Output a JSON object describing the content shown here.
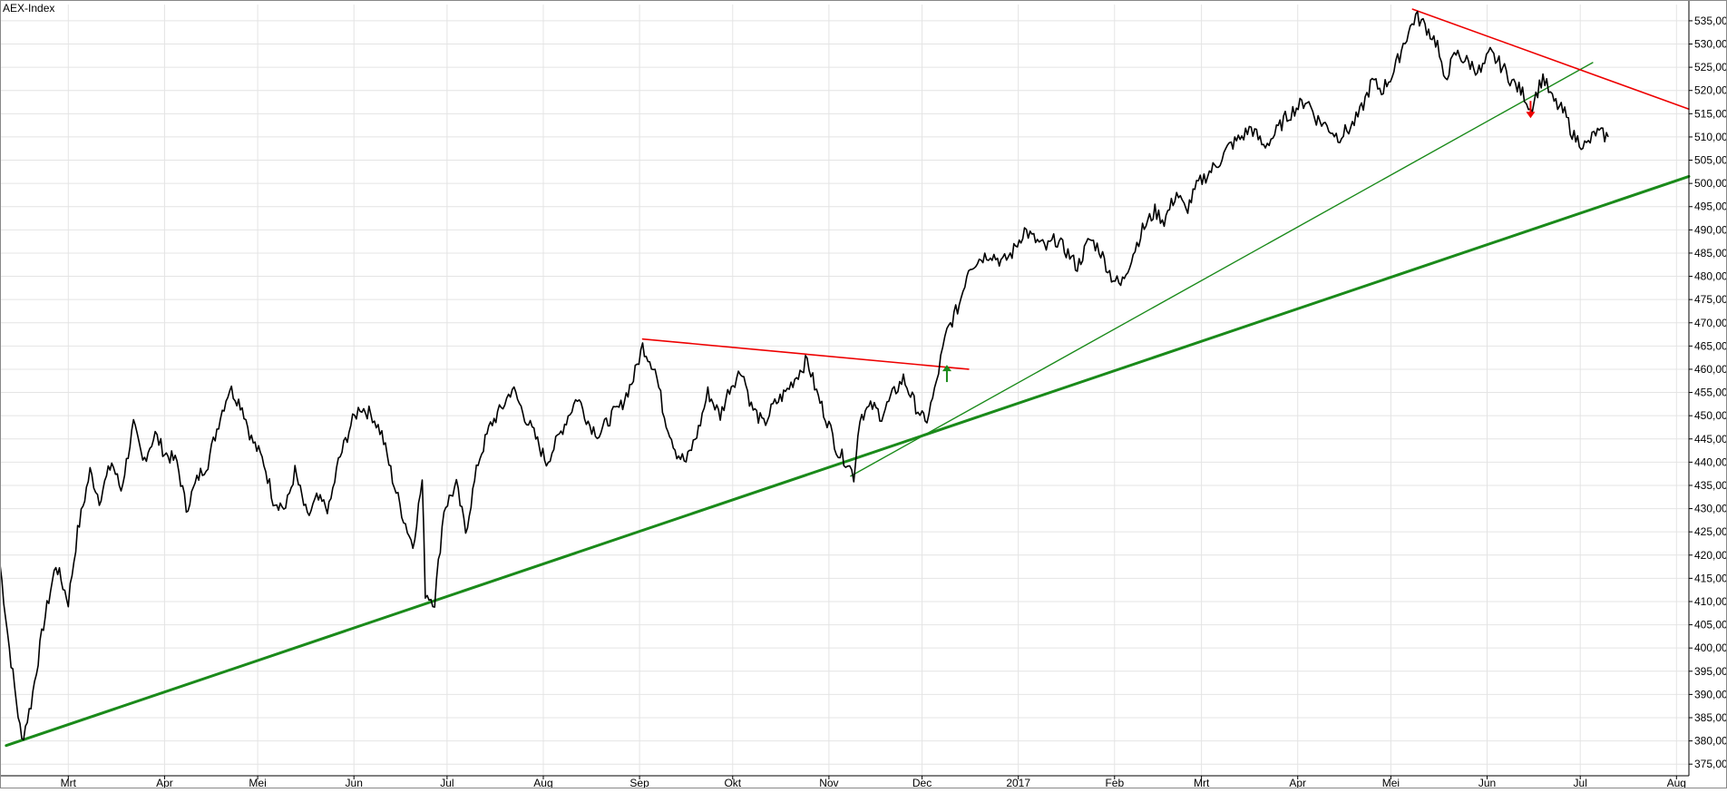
{
  "chart_data": {
    "type": "line",
    "title": "AEX-Index",
    "xlabel": "",
    "ylabel": "",
    "ylim": [
      372.5,
      538.5
    ],
    "y_ticks": [
      375,
      380,
      385,
      390,
      395,
      400,
      405,
      410,
      415,
      420,
      425,
      430,
      435,
      440,
      445,
      450,
      455,
      460,
      465,
      470,
      475,
      480,
      485,
      490,
      495,
      500,
      505,
      510,
      515,
      520,
      525,
      530,
      535
    ],
    "y_tick_labels": [
      "375,00",
      "380,00",
      "385,00",
      "390,00",
      "395,00",
      "400,00",
      "405,00",
      "410,00",
      "415,00",
      "420,00",
      "425,00",
      "430,00",
      "435,00",
      "440,00",
      "445,00",
      "450,00",
      "455,00",
      "460,00",
      "465,00",
      "470,00",
      "475,00",
      "480,00",
      "485,00",
      "490,00",
      "495,00",
      "500,00",
      "505,00",
      "510,00",
      "515,00",
      "520,00",
      "525,00",
      "530,00",
      "535,00"
    ],
    "x_range": [
      "2016-02-08",
      "2017-08-05"
    ],
    "x_ticks": [
      {
        "date": "2016-03-01",
        "label": "Mrt"
      },
      {
        "date": "2016-04-01",
        "label": "Apr"
      },
      {
        "date": "2016-05-01",
        "label": "Mei"
      },
      {
        "date": "2016-06-01",
        "label": "Jun"
      },
      {
        "date": "2016-07-01",
        "label": "Jul"
      },
      {
        "date": "2016-08-01",
        "label": "Aug"
      },
      {
        "date": "2016-09-01",
        "label": "Sep"
      },
      {
        "date": "2016-10-01",
        "label": "Okt"
      },
      {
        "date": "2016-11-01",
        "label": "Nov"
      },
      {
        "date": "2016-12-01",
        "label": "Dec"
      },
      {
        "date": "2017-01-01",
        "label": "2017"
      },
      {
        "date": "2017-02-01",
        "label": "Feb"
      },
      {
        "date": "2017-03-01",
        "label": "Mrt"
      },
      {
        "date": "2017-04-01",
        "label": "Apr"
      },
      {
        "date": "2017-05-01",
        "label": "Mei"
      },
      {
        "date": "2017-06-01",
        "label": "Jun"
      },
      {
        "date": "2017-07-01",
        "label": "Jul"
      },
      {
        "date": "2017-08-01",
        "label": "Aug"
      }
    ],
    "grid": true,
    "series": [
      {
        "color": "#000000",
        "points": [
          [
            "2016-02-08",
            418
          ],
          [
            "2016-02-11",
            400
          ],
          [
            "2016-02-15",
            380
          ],
          [
            "2016-02-18",
            388
          ],
          [
            "2016-02-22",
            405
          ],
          [
            "2016-02-26",
            418
          ],
          [
            "2016-03-01",
            410
          ],
          [
            "2016-03-04",
            425
          ],
          [
            "2016-03-08",
            438
          ],
          [
            "2016-03-11",
            432
          ],
          [
            "2016-03-15",
            440
          ],
          [
            "2016-03-18",
            434
          ],
          [
            "2016-03-22",
            448
          ],
          [
            "2016-03-25",
            440
          ],
          [
            "2016-03-29",
            446
          ],
          [
            "2016-04-01",
            442
          ],
          [
            "2016-04-05",
            440
          ],
          [
            "2016-04-08",
            430
          ],
          [
            "2016-04-12",
            437
          ],
          [
            "2016-04-15",
            440
          ],
          [
            "2016-04-19",
            450
          ],
          [
            "2016-04-22",
            456
          ],
          [
            "2016-04-26",
            452
          ],
          [
            "2016-04-29",
            445
          ],
          [
            "2016-05-03",
            440
          ],
          [
            "2016-05-06",
            432
          ],
          [
            "2016-05-10",
            430
          ],
          [
            "2016-05-13",
            438
          ],
          [
            "2016-05-17",
            428
          ],
          [
            "2016-05-20",
            432
          ],
          [
            "2016-05-24",
            430
          ],
          [
            "2016-05-27",
            440
          ],
          [
            "2016-05-31",
            448
          ],
          [
            "2016-06-03",
            452
          ],
          [
            "2016-06-07",
            450
          ],
          [
            "2016-06-10",
            446
          ],
          [
            "2016-06-14",
            435
          ],
          [
            "2016-06-17",
            428
          ],
          [
            "2016-06-20",
            422
          ],
          [
            "2016-06-23",
            436
          ],
          [
            "2016-06-24",
            412
          ],
          [
            "2016-06-27",
            410
          ],
          [
            "2016-06-30",
            430
          ],
          [
            "2016-07-04",
            435
          ],
          [
            "2016-07-07",
            425
          ],
          [
            "2016-07-11",
            440
          ],
          [
            "2016-07-15",
            448
          ],
          [
            "2016-07-19",
            452
          ],
          [
            "2016-07-22",
            456
          ],
          [
            "2016-07-26",
            450
          ],
          [
            "2016-07-29",
            446
          ],
          [
            "2016-08-02",
            440
          ],
          [
            "2016-08-05",
            444
          ],
          [
            "2016-08-09",
            450
          ],
          [
            "2016-08-12",
            454
          ],
          [
            "2016-08-16",
            448
          ],
          [
            "2016-08-19",
            446
          ],
          [
            "2016-08-23",
            450
          ],
          [
            "2016-08-26",
            452
          ],
          [
            "2016-08-30",
            458
          ],
          [
            "2016-09-02",
            465
          ],
          [
            "2016-09-06",
            460
          ],
          [
            "2016-09-09",
            450
          ],
          [
            "2016-09-13",
            442
          ],
          [
            "2016-09-16",
            440
          ],
          [
            "2016-09-20",
            447
          ],
          [
            "2016-09-23",
            455
          ],
          [
            "2016-09-27",
            450
          ],
          [
            "2016-09-30",
            456
          ],
          [
            "2016-10-04",
            460
          ],
          [
            "2016-10-07",
            452
          ],
          [
            "2016-10-11",
            448
          ],
          [
            "2016-10-14",
            452
          ],
          [
            "2016-10-18",
            455
          ],
          [
            "2016-10-21",
            458
          ],
          [
            "2016-10-25",
            462
          ],
          [
            "2016-10-28",
            455
          ],
          [
            "2016-11-01",
            448
          ],
          [
            "2016-11-04",
            442
          ],
          [
            "2016-11-07",
            440
          ],
          [
            "2016-11-09",
            437
          ],
          [
            "2016-11-11",
            450
          ],
          [
            "2016-11-15",
            452
          ],
          [
            "2016-11-18",
            450
          ],
          [
            "2016-11-22",
            455
          ],
          [
            "2016-11-25",
            458
          ],
          [
            "2016-11-29",
            452
          ],
          [
            "2016-12-01",
            450
          ],
          [
            "2016-12-02",
            448
          ],
          [
            "2016-12-05",
            455
          ],
          [
            "2016-12-07",
            462
          ],
          [
            "2016-12-09",
            468
          ],
          [
            "2016-12-13",
            474
          ],
          [
            "2016-12-16",
            482
          ],
          [
            "2016-12-20",
            484
          ],
          [
            "2016-12-23",
            485
          ],
          [
            "2016-12-27",
            483
          ],
          [
            "2016-12-30",
            485
          ],
          [
            "2017-01-03",
            490
          ],
          [
            "2017-01-06",
            488
          ],
          [
            "2017-01-10",
            486
          ],
          [
            "2017-01-13",
            488
          ],
          [
            "2017-01-17",
            485
          ],
          [
            "2017-01-20",
            482
          ],
          [
            "2017-01-24",
            488
          ],
          [
            "2017-01-27",
            486
          ],
          [
            "2017-01-31",
            480
          ],
          [
            "2017-02-03",
            478
          ],
          [
            "2017-02-07",
            485
          ],
          [
            "2017-02-10",
            490
          ],
          [
            "2017-02-14",
            494
          ],
          [
            "2017-02-17",
            492
          ],
          [
            "2017-02-21",
            498
          ],
          [
            "2017-02-24",
            494
          ],
          [
            "2017-02-28",
            500
          ],
          [
            "2017-03-03",
            502
          ],
          [
            "2017-03-07",
            505
          ],
          [
            "2017-03-10",
            508
          ],
          [
            "2017-03-14",
            510
          ],
          [
            "2017-03-17",
            512
          ],
          [
            "2017-03-21",
            508
          ],
          [
            "2017-03-24",
            510
          ],
          [
            "2017-03-28",
            514
          ],
          [
            "2017-03-31",
            516
          ],
          [
            "2017-04-04",
            518
          ],
          [
            "2017-04-07",
            514
          ],
          [
            "2017-04-11",
            512
          ],
          [
            "2017-04-14",
            510
          ],
          [
            "2017-04-18",
            512
          ],
          [
            "2017-04-21",
            515
          ],
          [
            "2017-04-25",
            522
          ],
          [
            "2017-04-28",
            520
          ],
          [
            "2017-05-02",
            524
          ],
          [
            "2017-05-05",
            530
          ],
          [
            "2017-05-09",
            536
          ],
          [
            "2017-05-12",
            534
          ],
          [
            "2017-05-16",
            530
          ],
          [
            "2017-05-18",
            522
          ],
          [
            "2017-05-22",
            528
          ],
          [
            "2017-05-26",
            526
          ],
          [
            "2017-05-30",
            524
          ],
          [
            "2017-06-02",
            528
          ],
          [
            "2017-06-06",
            525
          ],
          [
            "2017-06-09",
            522
          ],
          [
            "2017-06-13",
            519
          ],
          [
            "2017-06-15",
            516
          ],
          [
            "2017-06-19",
            523
          ],
          [
            "2017-06-22",
            518
          ],
          [
            "2017-06-26",
            515
          ],
          [
            "2017-06-29",
            510
          ],
          [
            "2017-07-03",
            508
          ],
          [
            "2017-07-06",
            511
          ],
          [
            "2017-07-10",
            510
          ]
        ]
      }
    ],
    "trendlines": [
      {
        "color": "#1a8a1a",
        "width": 3,
        "from": [
          "2016-02-10",
          379
        ],
        "to": [
          "2017-08-05",
          501.5
        ]
      },
      {
        "color": "#1a8a1a",
        "width": 1.4,
        "from": [
          "2016-11-08",
          437
        ],
        "to": [
          "2017-07-05",
          526
        ]
      },
      {
        "color": "#ee0000",
        "width": 1.6,
        "from": [
          "2016-09-02",
          466.5
        ],
        "to": [
          "2016-12-16",
          460
        ]
      },
      {
        "color": "#ee0000",
        "width": 1.6,
        "from": [
          "2017-05-08",
          537.5
        ],
        "to": [
          "2017-08-05",
          516
        ]
      }
    ],
    "arrows": [
      {
        "direction": "up",
        "color": "#1a8a1a",
        "date": "2016-12-09",
        "value": 459
      },
      {
        "direction": "down",
        "color": "#ee0000",
        "date": "2017-06-15",
        "value": 516
      }
    ]
  }
}
